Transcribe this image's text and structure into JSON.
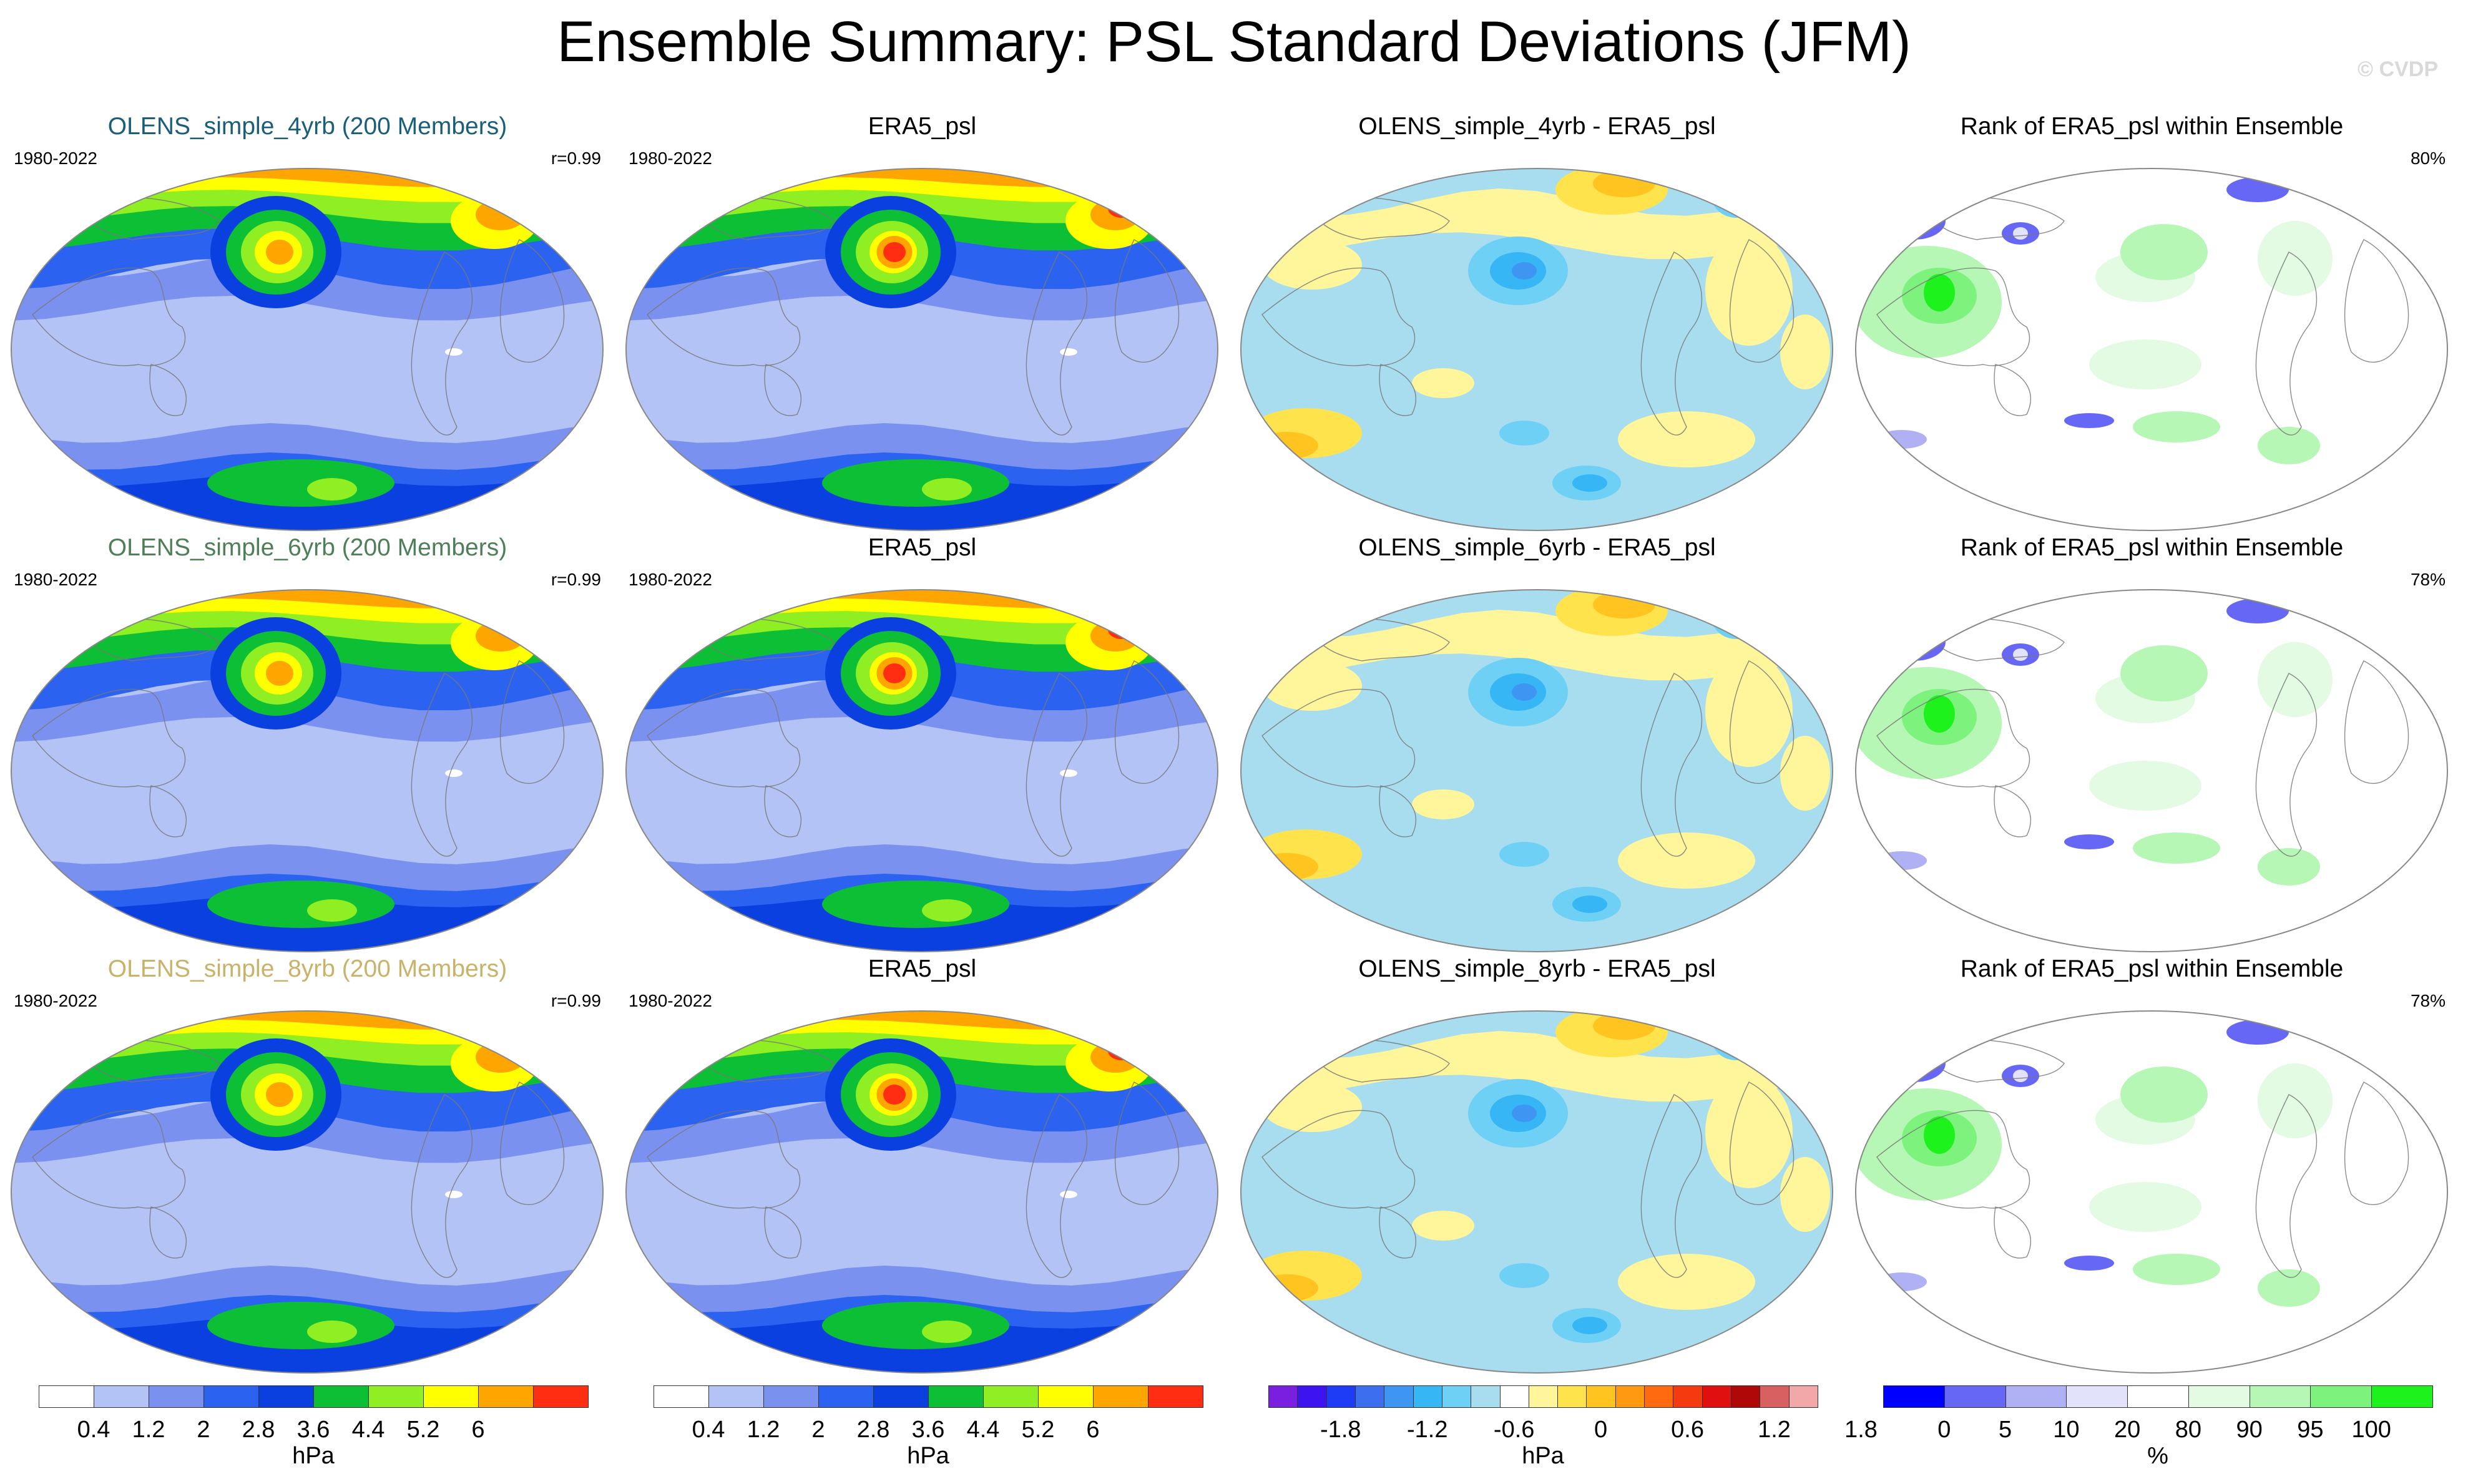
{
  "title": "Ensemble Summary: PSL Standard Deviations (JFM)",
  "watermark": "© CVDP",
  "rows": [
    {
      "model": {
        "title": "OLENS_simple_4yrb (200 Members)",
        "title_color": "#1a5f7a",
        "years": "1980-2022",
        "r": "r=0.99"
      },
      "obs": {
        "title": "ERA5_psl",
        "years": "1980-2022"
      },
      "diff": {
        "title": "OLENS_simple_4yrb - ERA5_psl"
      },
      "rank": {
        "title": "Rank of ERA5_psl within Ensemble",
        "pct": "80%"
      }
    },
    {
      "model": {
        "title": "OLENS_simple_6yrb (200 Members)",
        "title_color": "#4f7f58",
        "years": "1980-2022",
        "r": "r=0.99"
      },
      "obs": {
        "title": "ERA5_psl",
        "years": "1980-2022"
      },
      "diff": {
        "title": "OLENS_simple_6yrb - ERA5_psl"
      },
      "rank": {
        "title": "Rank of ERA5_psl within Ensemble",
        "pct": "78%"
      }
    },
    {
      "model": {
        "title": "OLENS_simple_8yrb (200 Members)",
        "title_color": "#c9b36a",
        "years": "1980-2022",
        "r": "r=0.99"
      },
      "obs": {
        "title": "ERA5_psl",
        "years": "1980-2022"
      },
      "diff": {
        "title": "OLENS_simple_8yrb - ERA5_psl"
      },
      "rank": {
        "title": "Rank of ERA5_psl within Ensemble",
        "pct": "78%"
      }
    }
  ],
  "colorbars": [
    {
      "unit": "hPa",
      "colors": [
        "#ffffff",
        "#b4c3f5",
        "#7b91ef",
        "#2b63f0",
        "#0a3fe0",
        "#0dbf35",
        "#8fef22",
        "#ffff00",
        "#ffa500",
        "#ff2d12"
      ],
      "ticks": [
        "0.4",
        "1.2",
        "2",
        "2.8",
        "3.6",
        "4.4",
        "5.2",
        "6"
      ]
    },
    {
      "unit": "hPa",
      "colors": [
        "#ffffff",
        "#b4c3f5",
        "#7b91ef",
        "#2b63f0",
        "#0a3fe0",
        "#0dbf35",
        "#8fef22",
        "#ffff00",
        "#ffa500",
        "#ff2d12"
      ],
      "ticks": [
        "0.4",
        "1.2",
        "2",
        "2.8",
        "3.6",
        "4.4",
        "5.2",
        "6"
      ]
    },
    {
      "unit": "hPa",
      "colors": [
        "#7a1fe0",
        "#3d13f0",
        "#1e3cf5",
        "#3d6ef0",
        "#3e95f2",
        "#36b6f5",
        "#6fd0f5",
        "#a8ddf0",
        "#ffffff",
        "#fff59a",
        "#ffe34d",
        "#ffc41f",
        "#ff9a10",
        "#ff6a10",
        "#f53a10",
        "#e01010",
        "#b00808",
        "#d86060",
        "#f2a8a8"
      ],
      "ticks": [
        "-1.8",
        "-1.2",
        "-0.6",
        "0",
        "0.6",
        "1.2",
        "1.8"
      ]
    },
    {
      "unit": "%",
      "colors": [
        "#0000ff",
        "#6767f5",
        "#b0b0f5",
        "#e2e2fb",
        "#ffffff",
        "#e2fbe2",
        "#b6f7b6",
        "#7df27d",
        "#1df21d"
      ],
      "ticks": [
        "0",
        "5",
        "10",
        "20",
        "80",
        "90",
        "95",
        "100"
      ]
    }
  ],
  "chart_data": [
    {
      "type": "heatmap",
      "title": "OLENS_simple_4yrb (200 Members)",
      "period": "1980-2022",
      "pattern_correlation": 0.99,
      "units": "hPa",
      "levels": [
        0.4,
        1.2,
        2,
        2.8,
        3.6,
        4.4,
        5.2,
        6
      ]
    },
    {
      "type": "heatmap",
      "title": "ERA5_psl",
      "period": "1980-2022",
      "units": "hPa",
      "levels": [
        0.4,
        1.2,
        2,
        2.8,
        3.6,
        4.4,
        5.2,
        6
      ]
    },
    {
      "type": "heatmap",
      "title": "OLENS_simple_4yrb - ERA5_psl",
      "units": "hPa",
      "levels": [
        -1.8,
        -1.2,
        -0.6,
        0,
        0.6,
        1.2,
        1.8
      ]
    },
    {
      "type": "heatmap",
      "title": "Rank of ERA5_psl within Ensemble",
      "units": "%",
      "area_within_range": "80%",
      "levels": [
        0,
        5,
        10,
        20,
        80,
        90,
        95,
        100
      ]
    },
    {
      "type": "heatmap",
      "title": "OLENS_simple_6yrb (200 Members)",
      "period": "1980-2022",
      "pattern_correlation": 0.99,
      "units": "hPa",
      "levels": [
        0.4,
        1.2,
        2,
        2.8,
        3.6,
        4.4,
        5.2,
        6
      ]
    },
    {
      "type": "heatmap",
      "title": "ERA5_psl",
      "period": "1980-2022",
      "units": "hPa",
      "levels": [
        0.4,
        1.2,
        2,
        2.8,
        3.6,
        4.4,
        5.2,
        6
      ]
    },
    {
      "type": "heatmap",
      "title": "OLENS_simple_6yrb - ERA5_psl",
      "units": "hPa",
      "levels": [
        -1.8,
        -1.2,
        -0.6,
        0,
        0.6,
        1.2,
        1.8
      ]
    },
    {
      "type": "heatmap",
      "title": "Rank of ERA5_psl within Ensemble",
      "units": "%",
      "area_within_range": "78%",
      "levels": [
        0,
        5,
        10,
        20,
        80,
        90,
        95,
        100
      ]
    },
    {
      "type": "heatmap",
      "title": "OLENS_simple_8yrb (200 Members)",
      "period": "1980-2022",
      "pattern_correlation": 0.99,
      "units": "hPa",
      "levels": [
        0.4,
        1.2,
        2,
        2.8,
        3.6,
        4.4,
        5.2,
        6
      ]
    },
    {
      "type": "heatmap",
      "title": "ERA5_psl",
      "period": "1980-2022",
      "units": "hPa",
      "levels": [
        0.4,
        1.2,
        2,
        2.8,
        3.6,
        4.4,
        5.2,
        6
      ]
    },
    {
      "type": "heatmap",
      "title": "OLENS_simple_8yrb - ERA5_psl",
      "units": "hPa",
      "levels": [
        -1.8,
        -1.2,
        -0.6,
        0,
        0.6,
        1.2,
        1.8
      ]
    },
    {
      "type": "heatmap",
      "title": "Rank of ERA5_psl within Ensemble",
      "units": "%",
      "area_within_range": "78%",
      "levels": [
        0,
        5,
        10,
        20,
        80,
        90,
        95,
        100
      ]
    }
  ]
}
